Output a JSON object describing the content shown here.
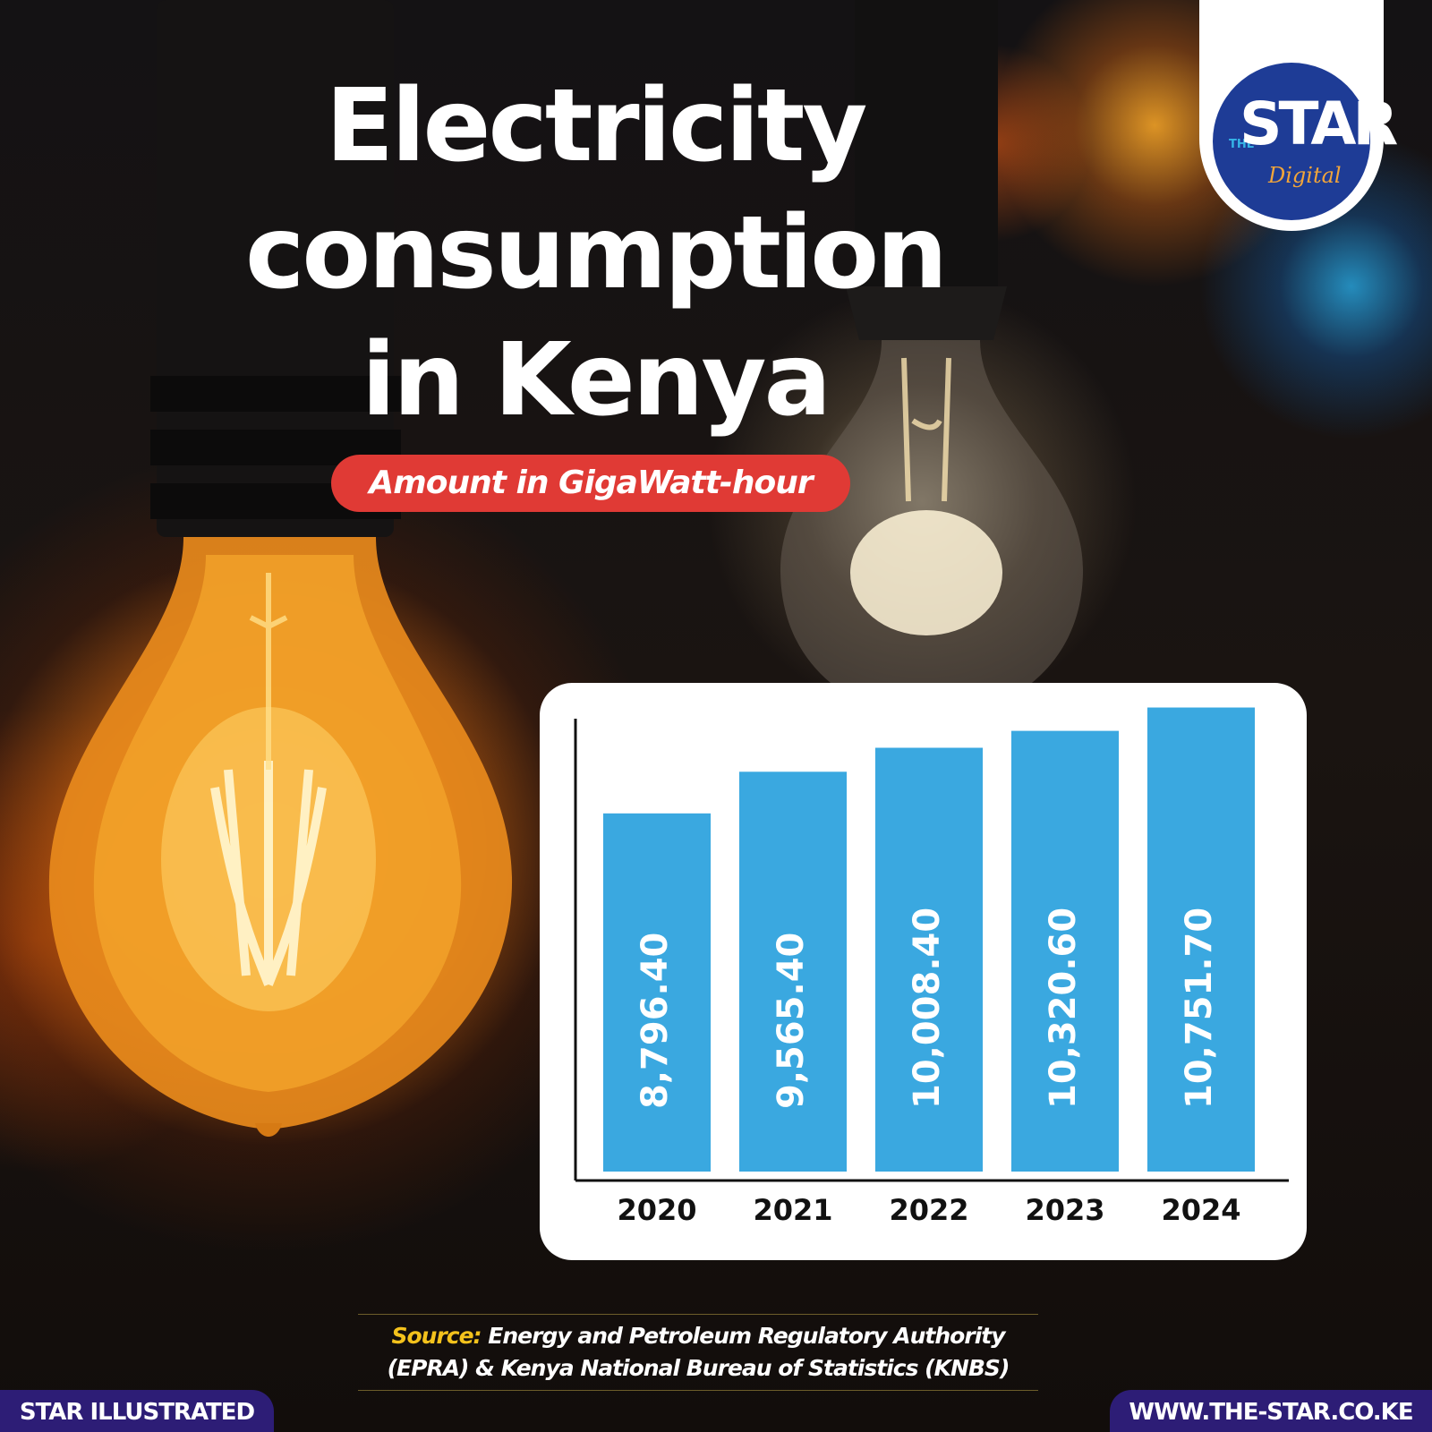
{
  "title": "Electricity consumption in Kenya",
  "subtitle": "Amount in GigaWatt-hour",
  "logo": {
    "the": "THE",
    "star": "STAR",
    "digital": "Digital"
  },
  "source": {
    "label": "Source:",
    "text": "Energy and Petroleum Regulatory Authority (EPRA) & Kenya National Bureau of Statistics (KNBS)"
  },
  "footer": {
    "left": "STAR ILLUSTRATED",
    "right": "WWW.THE-STAR.CO.KE"
  },
  "colors": {
    "bar": "#3aa8e0",
    "accent": "#e03a35",
    "footer": "#2d1d76",
    "source_label": "#f4c21c",
    "logo_circle": "#1e3c96"
  },
  "chart_data": {
    "type": "bar",
    "categories": [
      "2020",
      "2021",
      "2022",
      "2023",
      "2024"
    ],
    "values": [
      8796.4,
      9565.4,
      10008.4,
      10320.6,
      10751.7
    ],
    "value_labels": [
      "8,796.40",
      "9,565.40",
      "10,008.40",
      "10,320.60",
      "10,751.70"
    ],
    "title": "Electricity consumption in Kenya",
    "subtitle": "Amount in GigaWatt-hour",
    "xlabel": "",
    "ylabel": "",
    "ylim": [
      0,
      12000
    ],
    "grid": false,
    "legend": "none"
  }
}
